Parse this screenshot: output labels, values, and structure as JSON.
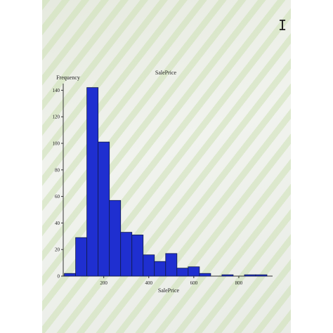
{
  "colors": {
    "bar_fill": "#1f2fd0",
    "bar_stroke": "#0f1a4a",
    "axis": "#333333",
    "text": "#222222"
  },
  "chart_data": {
    "type": "bar",
    "title": "SalePrice",
    "xlabel": "SalePrice",
    "ylabel": "Frequency",
    "x_ticks": [
      200,
      400,
      600,
      800
    ],
    "y_ticks": [
      0,
      20,
      40,
      60,
      80,
      100,
      120,
      140
    ],
    "xlim": [
      20,
      950
    ],
    "ylim": [
      0,
      145
    ],
    "bin_width": 50,
    "bins": [
      {
        "start": 25,
        "count": 2
      },
      {
        "start": 75,
        "count": 29
      },
      {
        "start": 125,
        "count": 142
      },
      {
        "start": 175,
        "count": 101
      },
      {
        "start": 225,
        "count": 57
      },
      {
        "start": 275,
        "count": 33
      },
      {
        "start": 325,
        "count": 31
      },
      {
        "start": 375,
        "count": 16
      },
      {
        "start": 425,
        "count": 11
      },
      {
        "start": 475,
        "count": 17
      },
      {
        "start": 525,
        "count": 6
      },
      {
        "start": 575,
        "count": 7
      },
      {
        "start": 625,
        "count": 2
      },
      {
        "start": 675,
        "count": 0
      },
      {
        "start": 725,
        "count": 1
      },
      {
        "start": 775,
        "count": 0
      },
      {
        "start": 825,
        "count": 1
      },
      {
        "start": 875,
        "count": 1
      }
    ],
    "grid": false,
    "legend": "none"
  }
}
